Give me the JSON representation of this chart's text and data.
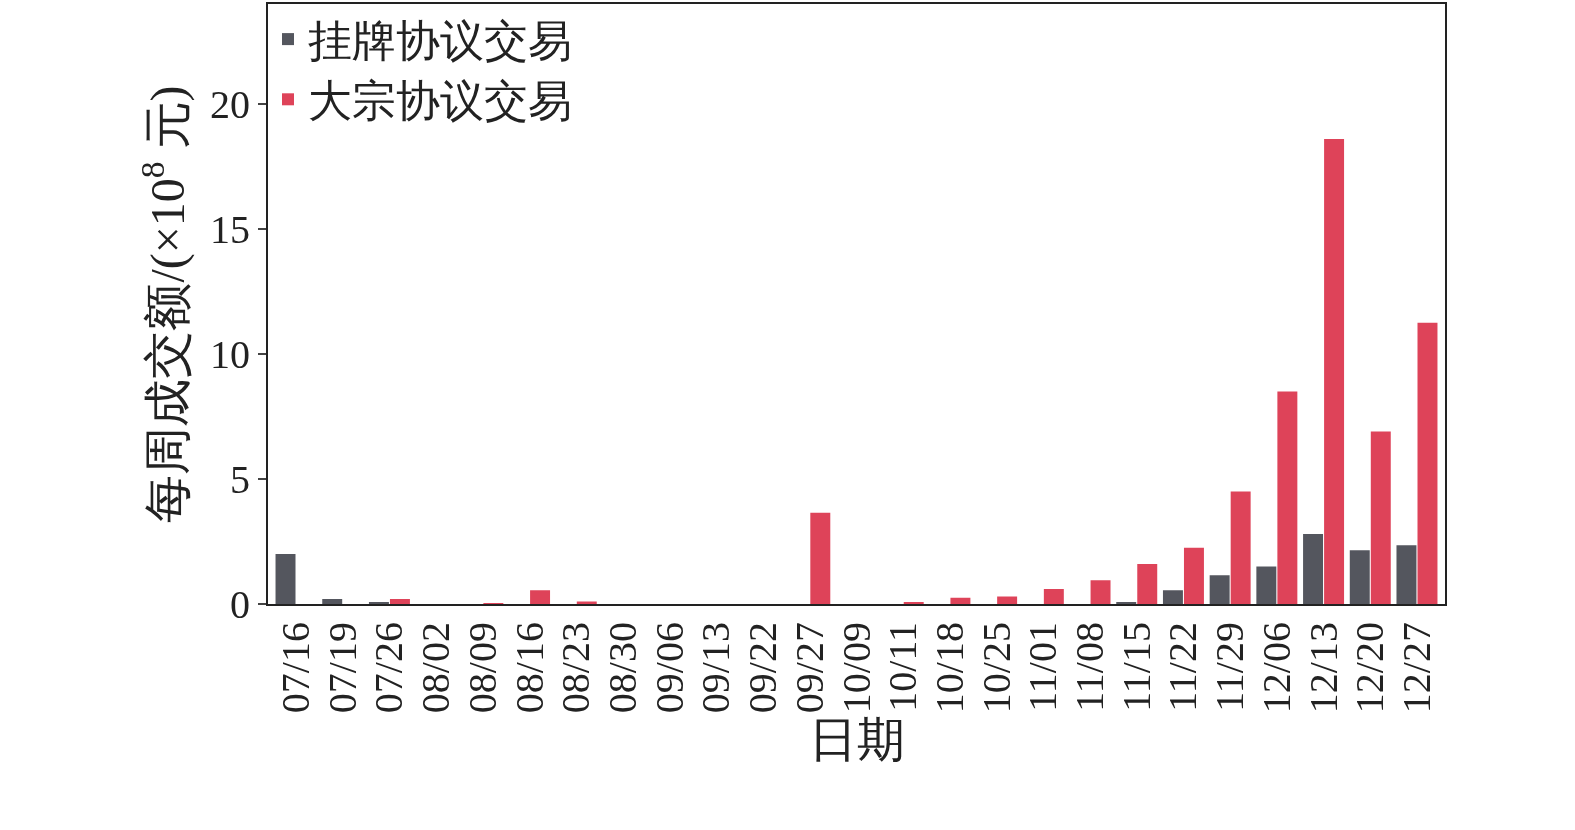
{
  "chart_data": {
    "type": "bar",
    "xlabel": "日期",
    "ylabel": "每周成交额/(×10$^{8}$ 元)",
    "categories": [
      "07/16",
      "07/19",
      "07/26",
      "08/02",
      "08/09",
      "08/16",
      "08/23",
      "08/30",
      "09/06",
      "09/13",
      "09/22",
      "09/27",
      "10/09",
      "10/11",
      "10/18",
      "10/25",
      "11/01",
      "11/08",
      "11/15",
      "11/22",
      "11/29",
      "12/06",
      "12/13",
      "12/20",
      "12/27"
    ],
    "series": [
      {
        "name": "挂牌协议交易",
        "color": "#54565e",
        "values": [
          2.0,
          0.2,
          0.05,
          0,
          0,
          0,
          0,
          0,
          0,
          0,
          0,
          0,
          0,
          0,
          0,
          0,
          0,
          0,
          0.05,
          0.55,
          1.15,
          1.5,
          2.8,
          2.15,
          2.35
        ]
      },
      {
        "name": "大宗协议交易",
        "color": "#de4359",
        "values": [
          0,
          0,
          0.2,
          0,
          0.02,
          0.55,
          0.1,
          0,
          0,
          0,
          0,
          3.65,
          0,
          0.05,
          0.25,
          0.3,
          0.6,
          0.95,
          1.6,
          2.25,
          4.5,
          8.5,
          18.6,
          6.9,
          11.25
        ]
      }
    ],
    "ylim": [
      0,
      24
    ],
    "yticks": [
      0,
      5,
      10,
      15,
      20
    ],
    "legend": "top left"
  }
}
